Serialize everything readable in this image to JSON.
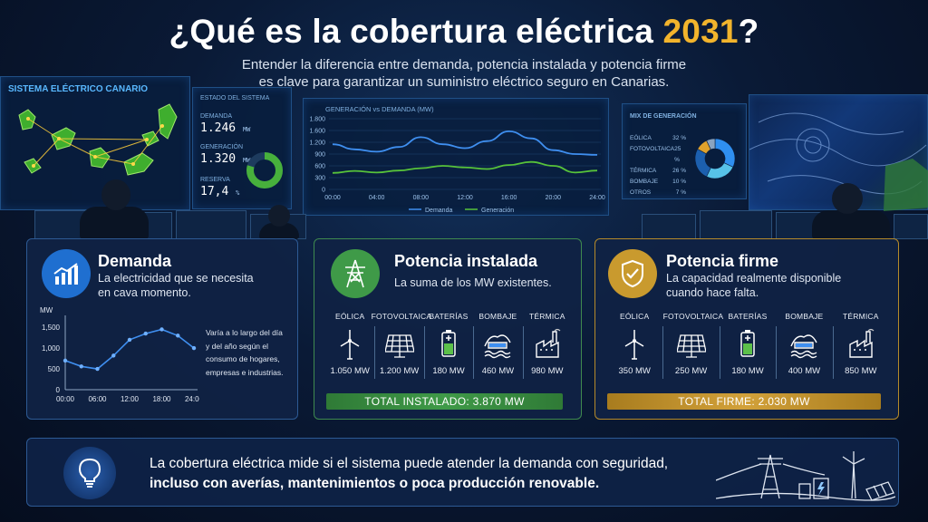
{
  "header": {
    "title_pre": "¿Qué es la cobertura eléctrica ",
    "title_year": "2031",
    "title_post": "?",
    "subtitle_line1": "Entender la diferencia entre demanda, potencia instalada y potencia firme",
    "subtitle_line2": "es clave para garantizar un suministro eléctrico seguro en Canarias."
  },
  "wall": {
    "map_label": "SISTEMA ELÉCTRICO CANARIO",
    "status_label": "ESTADO DEL SISTEMA",
    "status_items": [
      {
        "label": "DEMANDA",
        "value": "1.246",
        "unit": "MW"
      },
      {
        "label": "GENERACIÓN",
        "value": "1.320",
        "unit": "MW"
      },
      {
        "label": "RESERVA",
        "value": "17,4",
        "unit": "%"
      }
    ],
    "gen_chart_title": "GENERACIÓN vs DEMANDA (MW)",
    "gen_chart_yticks": [
      "1.800",
      "1.600",
      "1.200",
      "900",
      "600",
      "300",
      "0"
    ],
    "gen_chart_xticks": [
      "00:00",
      "04:00",
      "08:00",
      "12:00",
      "16:00",
      "20:00",
      "24:00"
    ],
    "gen_legend": [
      "Demanda",
      "Generación"
    ],
    "mix_title": "MIX DE GENERACIÓN",
    "mix_items": [
      {
        "label": "EÓLICA",
        "value": "32 %"
      },
      {
        "label": "FOTOVOLTAICA",
        "value": "25 %"
      },
      {
        "label": "TÉRMICA",
        "value": "26 %"
      },
      {
        "label": "BOMBAJE",
        "value": "10 %"
      },
      {
        "label": "OTROS",
        "value": "7 %"
      }
    ]
  },
  "demanda": {
    "title": "Demanda",
    "desc_line1": "La electricidad que se necesita",
    "desc_line2": "en cava momento.",
    "chart_unit": "MW",
    "note_lines": [
      "Varía a lo largo del día",
      "y del año según el",
      "consumo de hogares,",
      "empresas e industrias."
    ]
  },
  "instalada": {
    "title": "Potencia instalada",
    "desc_line1": "La suma de los MW existentes.",
    "sources": [
      {
        "name": "EÓLICA",
        "value": "1.050 MW",
        "icon": "wind-turbine-icon"
      },
      {
        "name": "FOTOVOLTAICA",
        "value": "1.200 MW",
        "icon": "solar-panel-icon"
      },
      {
        "name": "BATERÍAS",
        "value": "180 MW",
        "icon": "battery-icon"
      },
      {
        "name": "BOMBAJE",
        "value": "460 MW",
        "icon": "pumped-hydro-icon"
      },
      {
        "name": "TÉRMICA",
        "value": "980 MW",
        "icon": "thermal-plant-icon"
      }
    ],
    "total": "TOTAL INSTALADO: 3.870 MW",
    "color": "#3f9a48"
  },
  "firme": {
    "title": "Potencia firme",
    "desc_line1": "La capacidad realmente disponible",
    "desc_line2": "cuando hace falta.",
    "sources": [
      {
        "name": "EÓLICA",
        "value": "350 MW",
        "icon": "wind-turbine-icon"
      },
      {
        "name": "FOTOVOLTAICA",
        "value": "250 MW",
        "icon": "solar-panel-icon"
      },
      {
        "name": "BATERÍAS",
        "value": "180 MW",
        "icon": "battery-icon"
      },
      {
        "name": "BOMBAJE",
        "value": "400 MW",
        "icon": "pumped-hydro-icon"
      },
      {
        "name": "TÉRMICA",
        "value": "850 MW",
        "icon": "thermal-plant-icon"
      }
    ],
    "total": "TOTAL FIRME: 2.030 MW",
    "color": "#c99a2e"
  },
  "banner": {
    "line1": "La cobertura eléctrica mide si el sistema puede atender la demanda con seguridad,",
    "line2": "incluso con averías, mantenimientos o poca producción renovable."
  },
  "chart_data": [
    {
      "type": "line",
      "title": "",
      "ylabel": "MW",
      "xlabel": "",
      "x": [
        "00:00",
        "03:00",
        "06:00",
        "09:00",
        "12:00",
        "15:00",
        "18:00",
        "21:00",
        "24:00"
      ],
      "series": [
        {
          "name": "",
          "values": [
            700,
            560,
            500,
            820,
            1200,
            1350,
            1450,
            1300,
            1000
          ]
        }
      ],
      "yticks": [
        "1,500",
        "1,000",
        "500",
        "0"
      ],
      "xticks": [
        "00:00",
        "06:00",
        "12:00",
        "18:00",
        "24:00"
      ],
      "ylim": [
        0,
        1700
      ]
    },
    {
      "type": "line",
      "title": "GENERACIÓN vs DEMANDA (MW)",
      "x": [
        "00:00",
        "02:00",
        "04:00",
        "06:00",
        "08:00",
        "10:00",
        "12:00",
        "14:00",
        "16:00",
        "18:00",
        "20:00",
        "22:00",
        "24:00"
      ],
      "series": [
        {
          "name": "Demanda",
          "values": [
            1150,
            1020,
            960,
            1080,
            1330,
            1150,
            1050,
            1230,
            1480,
            1300,
            1000,
            900,
            880
          ]
        },
        {
          "name": "Generación",
          "values": [
            420,
            470,
            430,
            480,
            540,
            600,
            560,
            520,
            620,
            700,
            600,
            430,
            480
          ]
        }
      ],
      "ylim": [
        0,
        1800
      ],
      "grid": true,
      "legend": "bottom"
    },
    {
      "type": "pie",
      "title": "MIX DE GENERACIÓN",
      "categories": [
        "EÓLICA",
        "FOTOVOLTAICA",
        "TÉRMICA",
        "BOMBAJE",
        "OTROS"
      ],
      "values": [
        32,
        25,
        26,
        10,
        7
      ],
      "colors": [
        "#2f8ff0",
        "#57c2e8",
        "#1c5fae",
        "#e0a22c",
        "#8aa4c0"
      ]
    }
  ]
}
